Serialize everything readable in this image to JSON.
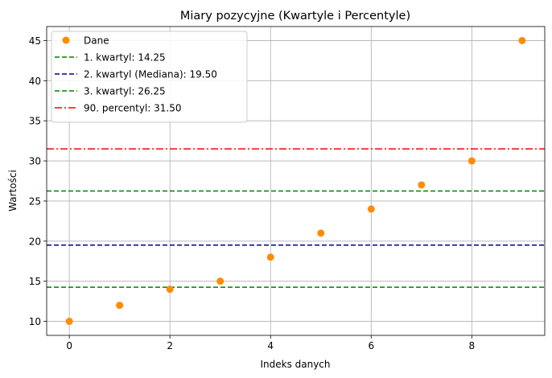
{
  "chart_data": {
    "type": "scatter",
    "title": "Miary pozycyjne (Kwartyle i Percentyle)",
    "xlabel": "Indeks danych",
    "ylabel": "Wartości",
    "xlim": [
      -0.45,
      9.45
    ],
    "ylim": [
      8.25,
      46.75
    ],
    "xticks": [
      0,
      2,
      4,
      6,
      8
    ],
    "yticks": [
      10,
      15,
      20,
      25,
      30,
      35,
      40,
      45
    ],
    "grid": true,
    "legend_position": "upper-left",
    "series": [
      {
        "name": "Dane",
        "kind": "scatter",
        "color": "#ff8c00",
        "x": [
          0,
          1,
          2,
          3,
          4,
          5,
          6,
          7,
          8,
          9
        ],
        "y": [
          10,
          12,
          14,
          15,
          18,
          21,
          24,
          27,
          30,
          45
        ]
      }
    ],
    "reference_lines": [
      {
        "name": "1. kwartyl: 14.25",
        "value": 14.25,
        "color": "#008000",
        "style": "dashed"
      },
      {
        "name": "2. kwartyl (Mediana): 19.50",
        "value": 19.5,
        "color": "#00008b",
        "style": "dashed"
      },
      {
        "name": "3. kwartyl: 26.25",
        "value": 26.25,
        "color": "#008000",
        "style": "dashed"
      },
      {
        "name": "90. percentyl: 31.50",
        "value": 31.5,
        "color": "#ff0000",
        "style": "dashdot"
      }
    ]
  }
}
